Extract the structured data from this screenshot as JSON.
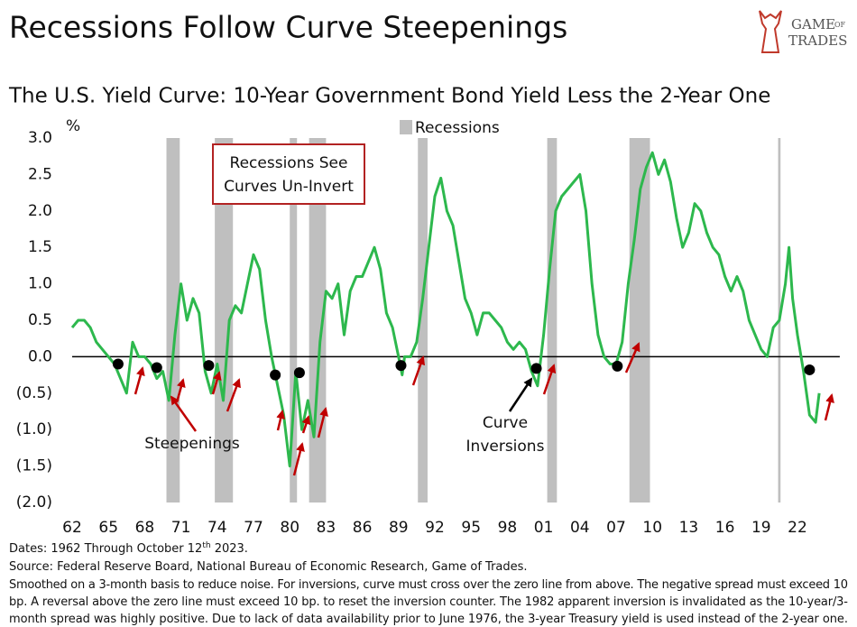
{
  "chart_data": {
    "type": "line",
    "title": "Recessions Follow Curve Steepenings",
    "subtitle": "The U.S. Yield Curve: 10-Year Government Bond Yield Less the 2-Year One",
    "y_unit": "%",
    "logo": [
      "GAME",
      "OF",
      "TRADES"
    ],
    "color": "#2db84d",
    "x": [
      1962,
      1962.5,
      1963,
      1963.5,
      1964,
      1964.5,
      1965,
      1965.5,
      1966,
      1966.5,
      1967,
      1967.5,
      1968,
      1968.5,
      1969,
      1969.5,
      1970,
      1970.5,
      1971,
      1971.5,
      1972,
      1972.5,
      1973,
      1973.5,
      1974,
      1974.5,
      1975,
      1975.5,
      1976,
      1976.5,
      1977,
      1977.5,
      1978,
      1978.5,
      1979,
      1979.5,
      1980,
      1980.5,
      1981,
      1981.5,
      1982,
      1982.5,
      1983,
      1983.5,
      1984,
      1984.5,
      1985,
      1985.5,
      1986,
      1986.5,
      1987,
      1987.5,
      1988,
      1988.5,
      1989,
      1989.3,
      1989.5,
      1990,
      1990.5,
      1991,
      1991.5,
      1992,
      1992.5,
      1993,
      1993.5,
      1994,
      1994.5,
      1995,
      1995.5,
      1996,
      1996.5,
      1997,
      1997.5,
      1998,
      1998.5,
      1999,
      1999.5,
      2000,
      2000.5,
      2001,
      2001.5,
      2002,
      2002.5,
      2003,
      2003.5,
      2004,
      2004.5,
      2005,
      2005.5,
      2006,
      2006.5,
      2007,
      2007.5,
      2008,
      2008.5,
      2009,
      2009.5,
      2010,
      2010.5,
      2011,
      2011.5,
      2012,
      2012.5,
      2013,
      2013.5,
      2014,
      2014.5,
      2015,
      2015.5,
      2016,
      2016.5,
      2017,
      2017.5,
      2018,
      2018.5,
      2019,
      2019.5,
      2020,
      2020.5,
      2021,
      2021.3,
      2021.6,
      2022,
      2022.5,
      2023,
      2023.5,
      2023.8
    ],
    "values": [
      0.4,
      0.5,
      0.5,
      0.4,
      0.2,
      0.1,
      0.0,
      -0.1,
      -0.3,
      -0.5,
      0.2,
      0.0,
      0.0,
      -0.1,
      -0.3,
      -0.2,
      -0.6,
      0.3,
      1.0,
      0.5,
      0.8,
      0.6,
      -0.2,
      -0.5,
      -0.1,
      -0.6,
      0.5,
      0.7,
      0.6,
      1.0,
      1.4,
      1.2,
      0.5,
      0.0,
      -0.4,
      -0.8,
      -1.5,
      -0.2,
      -1.0,
      -0.6,
      -1.1,
      0.2,
      0.9,
      0.8,
      1.0,
      0.3,
      0.9,
      1.1,
      1.1,
      1.3,
      1.5,
      1.2,
      0.6,
      0.4,
      0.0,
      -0.25,
      0.0,
      0.0,
      0.2,
      0.8,
      1.5,
      2.2,
      2.45,
      2.0,
      1.8,
      1.3,
      0.8,
      0.6,
      0.3,
      0.6,
      0.6,
      0.5,
      0.4,
      0.2,
      0.1,
      0.2,
      0.1,
      -0.2,
      -0.4,
      0.3,
      1.2,
      2.0,
      2.2,
      2.3,
      2.4,
      2.5,
      2.0,
      1.0,
      0.3,
      0.0,
      -0.1,
      -0.1,
      0.2,
      1.0,
      1.6,
      2.3,
      2.6,
      2.8,
      2.5,
      2.7,
      2.4,
      1.9,
      1.5,
      1.7,
      2.1,
      2.0,
      1.7,
      1.5,
      1.4,
      1.1,
      0.9,
      1.1,
      0.9,
      0.5,
      0.3,
      0.1,
      0.0,
      0.4,
      0.5,
      1.0,
      1.5,
      0.8,
      0.3,
      -0.2,
      -0.8,
      -0.9,
      -0.5
    ],
    "recessions": {
      "name": "Recessions",
      "color": "#bfbfbf",
      "spans": [
        [
          1969.8,
          1970.9
        ],
        [
          1973.8,
          1975.3
        ],
        [
          1980.0,
          1980.6
        ],
        [
          1981.6,
          1983.0
        ],
        [
          1990.6,
          1991.4
        ],
        [
          2001.3,
          2002.1
        ],
        [
          2008.1,
          2009.8
        ],
        [
          2020.4,
          2020.6
        ]
      ]
    },
    "inversions": {
      "x": [
        1965.8,
        1969.0,
        1973.3,
        1978.8,
        1980.8,
        1989.2,
        2000.4,
        2007.1,
        2023.0
      ],
      "y": [
        -0.1,
        -0.15,
        -0.12,
        -0.25,
        -0.22,
        -0.12,
        -0.16,
        -0.13,
        -0.18
      ]
    },
    "annotations": {
      "box": [
        "Recessions See",
        "Curves Un-Invert"
      ],
      "steepenings": "Steepenings",
      "inversions": [
        "Curve",
        "Inversions"
      ]
    },
    "xlim": [
      1962,
      2025.5
    ],
    "ylim": [
      -2.0,
      3.0
    ],
    "xticks": [
      {
        "value": 1962,
        "label": "62"
      },
      {
        "value": 1965,
        "label": "65"
      },
      {
        "value": 1968,
        "label": "68"
      },
      {
        "value": 1971,
        "label": "71"
      },
      {
        "value": 1974,
        "label": "74"
      },
      {
        "value": 1977,
        "label": "77"
      },
      {
        "value": 1980,
        "label": "80"
      },
      {
        "value": 1983,
        "label": "83"
      },
      {
        "value": 1986,
        "label": "86"
      },
      {
        "value": 1989,
        "label": "89"
      },
      {
        "value": 1992,
        "label": "92"
      },
      {
        "value": 1995,
        "label": "95"
      },
      {
        "value": 1998,
        "label": "98"
      },
      {
        "value": 2001,
        "label": "01"
      },
      {
        "value": 2004,
        "label": "04"
      },
      {
        "value": 2007,
        "label": "07"
      },
      {
        "value": 2010,
        "label": "10"
      },
      {
        "value": 2013,
        "label": "13"
      },
      {
        "value": 2016,
        "label": "16"
      },
      {
        "value": 2019,
        "label": "19"
      },
      {
        "value": 2022,
        "label": "22"
      }
    ],
    "yticks": [
      {
        "value": 3.0,
        "label": "3.0"
      },
      {
        "value": 2.5,
        "label": "2.5"
      },
      {
        "value": 2.0,
        "label": "2.0"
      },
      {
        "value": 1.5,
        "label": "1.5"
      },
      {
        "value": 1.0,
        "label": "1.0"
      },
      {
        "value": 0.5,
        "label": "0.5"
      },
      {
        "value": 0,
        "label": "0.0"
      },
      {
        "value": -0.5,
        "label": "(0.5)"
      },
      {
        "value": -1.0,
        "label": "(1.0)"
      },
      {
        "value": -1.5,
        "label": "(1.5)"
      },
      {
        "value": -2.0,
        "label": "(2.0)"
      }
    ],
    "date_note": [
      "Dates: 1962 Through October 12",
      "th",
      " 2023."
    ],
    "notes": [
      "Source: Federal Reserve Board, National Bureau of Economic Research, Game of Trades.",
      "Smoothed on a 3-month basis to reduce noise. For inversions, curve must cross over the zero line from above. The negative spread must exceed 10",
      "bp. A reversal above the zero line must exceed 10 bp. to reset the inversion counter. The 1982 apparent inversion is invalidated as the 10-year/3-",
      "month spread was highly positive. Due to lack of data availability prior to June 1976, the 3-year Treasury yield is used instead of the 2-year one."
    ]
  }
}
